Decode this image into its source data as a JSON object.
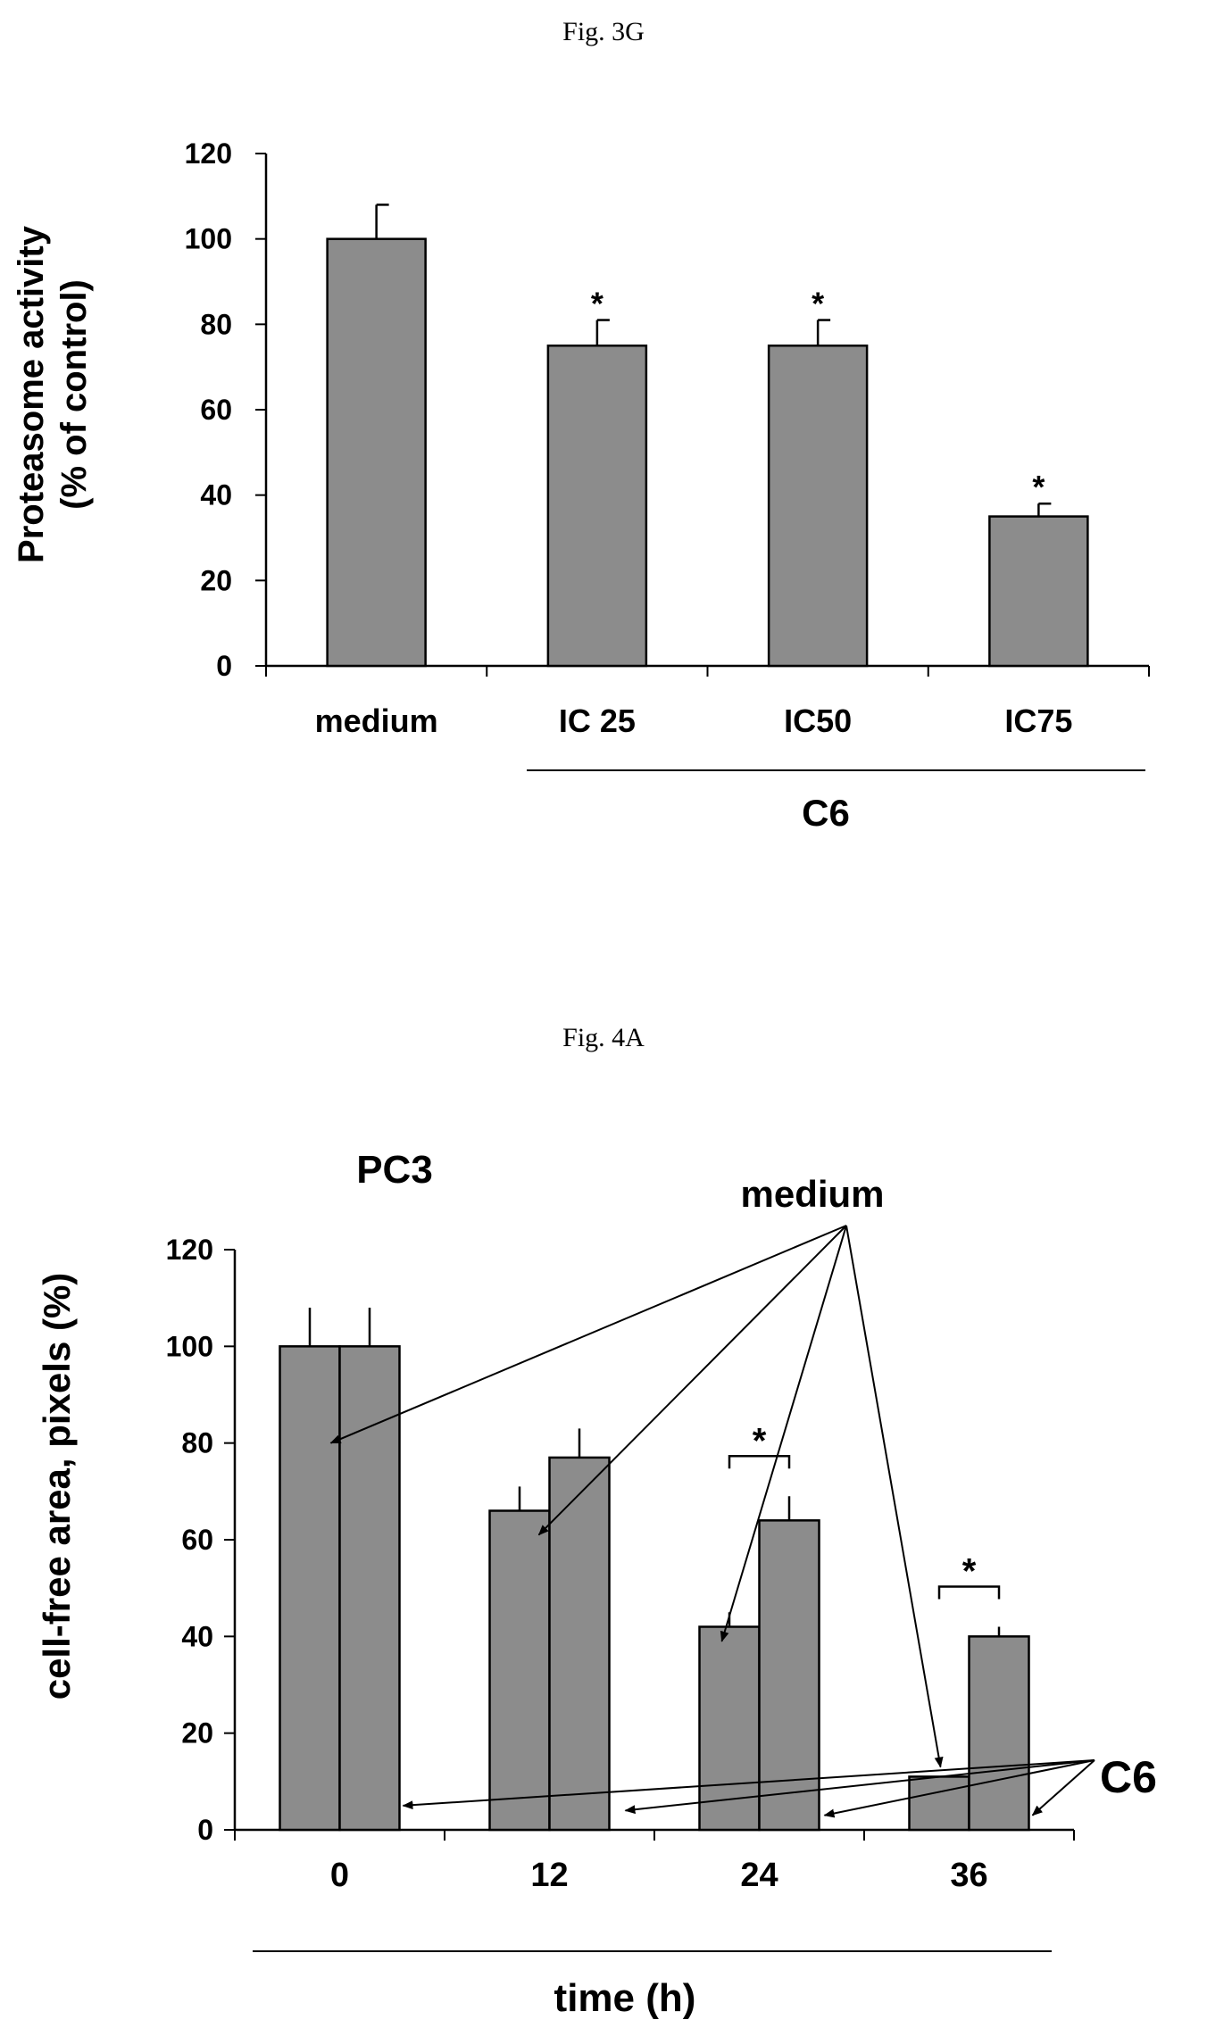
{
  "colors": {
    "bar_fill": "#8c8c8c",
    "ink": "#000000",
    "background": "#ffffff"
  },
  "chart_data": [
    {
      "fig_label": "Fig. 3G",
      "type": "bar",
      "title": "",
      "ylabel_line1": "Proteasome  activity",
      "ylabel_line2": "(% of control)",
      "xlabel": "",
      "ylim": [
        0,
        120
      ],
      "yticks": [
        0,
        20,
        40,
        60,
        80,
        100,
        120
      ],
      "categories": [
        "medium",
        "IC 25",
        "IC50",
        "IC75"
      ],
      "values": [
        100,
        75,
        75,
        35
      ],
      "errors": [
        8,
        6,
        6,
        3
      ],
      "significance": [
        false,
        true,
        true,
        true
      ],
      "sig_marker": "*",
      "group_label": "C6",
      "grid": false,
      "legend": "none"
    },
    {
      "fig_label": "Fig. 4A",
      "type": "bar",
      "title": "PC3",
      "ylabel": "cell-free area, pixels (%)",
      "xlabel": "time (h)",
      "ylim": [
        0,
        120
      ],
      "yticks": [
        0,
        20,
        40,
        60,
        80,
        100,
        120
      ],
      "categories": [
        "0",
        "12",
        "24",
        "36"
      ],
      "series": [
        {
          "name": "C6",
          "values": [
            100,
            66,
            42,
            11
          ],
          "errors": [
            8,
            5,
            3,
            0
          ]
        },
        {
          "name": "medium",
          "values": [
            100,
            77,
            64,
            40
          ],
          "errors": [
            8,
            6,
            5,
            2
          ]
        }
      ],
      "significance_groups": [
        "24",
        "36"
      ],
      "sig_marker": "*",
      "annotations": [
        "medium",
        "C6"
      ],
      "grid": false,
      "legend": "none"
    }
  ]
}
